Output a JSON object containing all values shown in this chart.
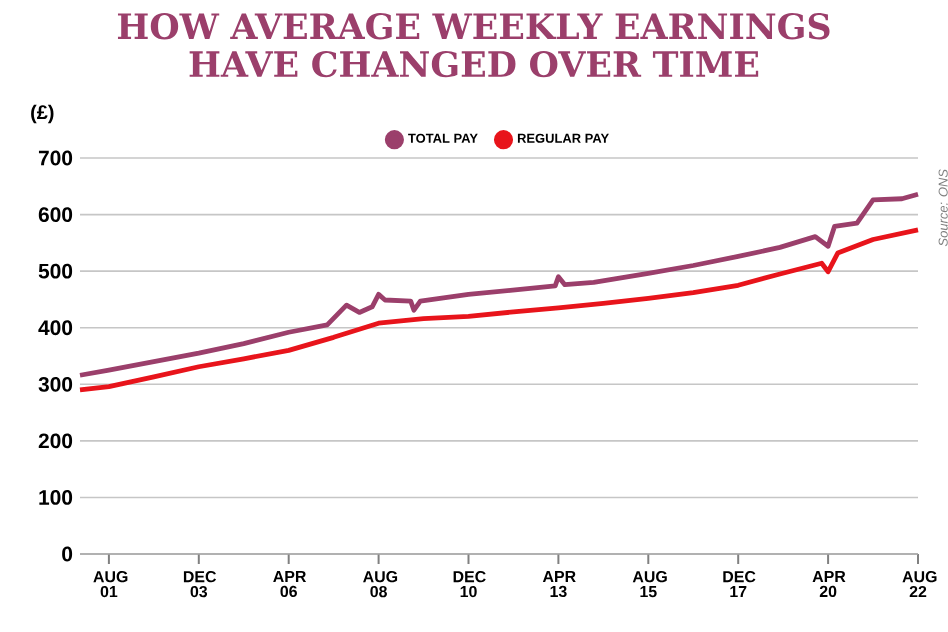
{
  "chart_data": {
    "type": "line",
    "title": "HOW AVERAGE WEEKLY EARNINGS HAVE CHANGED OVER TIME",
    "ylabel": "(£)",
    "annotations": [
      "Source: ONS"
    ],
    "xlim": [
      "2000-11",
      "2022-08"
    ],
    "xticks": [
      {
        "value": "2001-08",
        "label": "AUG 01"
      },
      {
        "value": "2003-12",
        "label": "DEC 03"
      },
      {
        "value": "2006-04",
        "label": "APR 06"
      },
      {
        "value": "2008-08",
        "label": "AUG 08"
      },
      {
        "value": "2010-12",
        "label": "DEC 10"
      },
      {
        "value": "2013-04",
        "label": "APR 13"
      },
      {
        "value": "2015-08",
        "label": "AUG 15"
      },
      {
        "value": "2017-12",
        "label": "DEC 17"
      },
      {
        "value": "2020-04",
        "label": "APR 20"
      },
      {
        "value": "2022-08",
        "label": "AUG 22"
      }
    ],
    "ylim": [
      0,
      700
    ],
    "yticks": [
      0,
      100,
      200,
      300,
      400,
      500,
      600,
      700
    ],
    "grid": "y",
    "legend": "top",
    "marker": "none",
    "line_style": "solid",
    "series": [
      {
        "name": "TOTAL PAY",
        "color": "#9b3f6b",
        "x": [
          "2000-11",
          "2001-08",
          "2002-10",
          "2003-12",
          "2005-02",
          "2006-04",
          "2007-04",
          "2007-10",
          "2008-02",
          "2008-06",
          "2008-08",
          "2008-10",
          "2009-06",
          "2009-07",
          "2009-09",
          "2010-12",
          "2012-01",
          "2013-03",
          "2013-04",
          "2013-06",
          "2014-03",
          "2015-08",
          "2016-10",
          "2017-12",
          "2019-01",
          "2019-12",
          "2020-04",
          "2020-06",
          "2021-01",
          "2021-06",
          "2022-03",
          "2022-08"
        ],
        "values": [
          316,
          325,
          340,
          355,
          372,
          392,
          405,
          440,
          427,
          437,
          459,
          449,
          447,
          431,
          447,
          459,
          466,
          474,
          490,
          476,
          480,
          496,
          510,
          526,
          542,
          561,
          544,
          579,
          585,
          626,
          628,
          636
        ]
      },
      {
        "name": "REGULAR PAY",
        "color": "#e8141b",
        "x": [
          "2000-11",
          "2001-08",
          "2002-10",
          "2003-12",
          "2005-02",
          "2006-04",
          "2007-06",
          "2008-08",
          "2009-10",
          "2010-12",
          "2012-02",
          "2013-04",
          "2014-06",
          "2015-08",
          "2016-10",
          "2017-12",
          "2019-01",
          "2020-02",
          "2020-04",
          "2020-07",
          "2021-06",
          "2022-08"
        ],
        "values": [
          290,
          296,
          313,
          331,
          345,
          360,
          383,
          408,
          416,
          420,
          428,
          435,
          443,
          452,
          462,
          475,
          495,
          514,
          499,
          532,
          556,
          573
        ]
      }
    ]
  }
}
